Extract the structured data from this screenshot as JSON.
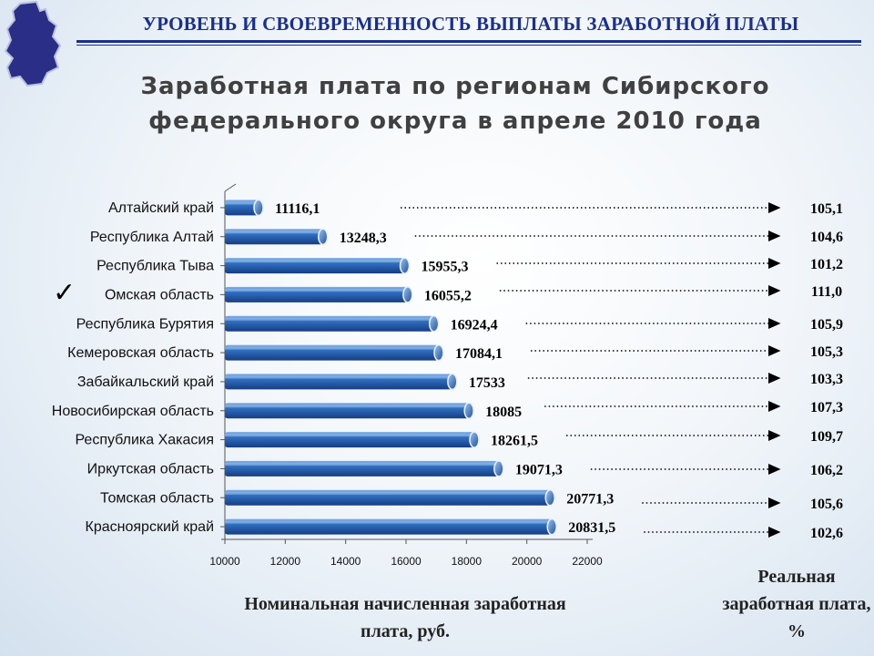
{
  "header": {
    "title": "УРОВЕНЬ И СВОЕВРЕМЕННОСТЬ ВЫПЛАТЫ ЗАРАБОТНОЙ ПЛАТЫ",
    "logo_icon": "omsk-region-map-icon",
    "logo_color": "#2a2e86"
  },
  "highlight_icon": "checkmark-icon",
  "chart_data": {
    "type": "bar",
    "orientation": "horizontal",
    "title": "Заработная плата по регионам Сибирского федерального округа в апреле 2010 года",
    "xlabel": "Номинальная начисленная заработная плата, руб.",
    "secondary_label": "Реальная заработная плата, %",
    "xlim": [
      10000,
      22000
    ],
    "xticks": [
      10000,
      12000,
      14000,
      16000,
      18000,
      20000,
      22000
    ],
    "bar_color": "#1f5fae",
    "highlighted_category": "Омская область",
    "categories": [
      "Алтайский край",
      "Республика Алтай",
      "Республика Тыва",
      "Омская область",
      "Республика Бурятия",
      "Кемеровская область",
      "Забайкальский край",
      "Новосибирская область",
      "Республика Хакасия",
      "Иркутская область",
      "Томская область",
      "Красноярский край"
    ],
    "values": [
      11116.1,
      13248.3,
      15955.3,
      16055.2,
      16924.4,
      17084.1,
      17533,
      18085,
      18261.5,
      19071.3,
      20771.3,
      20831.5
    ],
    "value_labels": [
      "11116,1",
      "13248,3",
      "15955,3",
      "16055,2",
      "16924,4",
      "17084,1",
      "17533",
      "18085",
      "18261,5",
      "19071,3",
      "20771,3",
      "20831,5"
    ],
    "real_wage_labels": [
      "105,1",
      "104,6",
      "101,2",
      "111,0",
      "105,9",
      "105,3",
      "103,3",
      "107,3",
      "109,7",
      "106,2",
      "105,6",
      "102,6"
    ]
  }
}
